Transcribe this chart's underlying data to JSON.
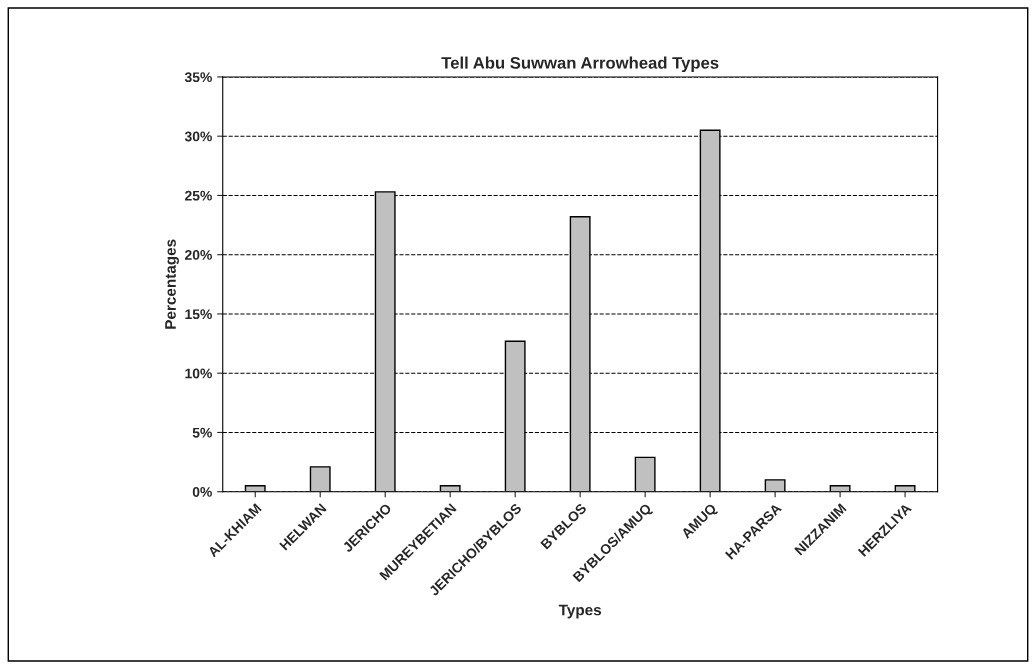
{
  "chart_data": {
    "type": "bar",
    "title": "Tell Abu Suwwan Arrowhead Types",
    "xlabel": "Types",
    "ylabel": "Percentages",
    "categories": [
      "AL-KHIAM",
      "HELWAN",
      "JERICHO",
      "MUREYBETIAN",
      "JERICHO/BYBLOS",
      "BYBLOS",
      "BYBLOS/AMUQ",
      "AMUQ",
      "HA-PARSA",
      "NIZZANIM",
      "HERZLIYA"
    ],
    "values": [
      0.5,
      2.1,
      25.3,
      0.5,
      12.7,
      23.2,
      2.9,
      30.5,
      1.0,
      0.5,
      0.5
    ],
    "color": "#c0c0c0",
    "ylim": [
      0,
      35
    ],
    "yticks": [
      {
        "value": 0,
        "label": "0%"
      },
      {
        "value": 5,
        "label": "5%"
      },
      {
        "value": 10,
        "label": "10%"
      },
      {
        "value": 15,
        "label": "15%"
      },
      {
        "value": 20,
        "label": "20%"
      },
      {
        "value": 25,
        "label": "25%"
      },
      {
        "value": 30,
        "label": "30%"
      },
      {
        "value": 35,
        "label": "35%"
      }
    ],
    "grid": "y",
    "line_style": "dashed"
  }
}
